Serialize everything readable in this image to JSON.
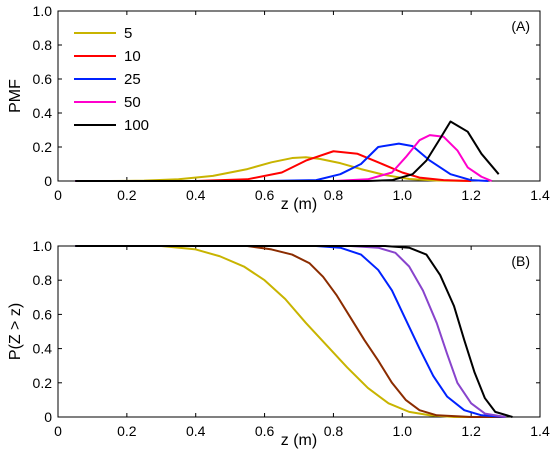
{
  "chart_data": [
    {
      "type": "line",
      "panel_label": "(A)",
      "xlabel": "z (m)",
      "ylabel": "PMF",
      "xlim": [
        0,
        1.4
      ],
      "ylim": [
        0,
        1.0
      ],
      "xticks": [
        "0",
        "0.2",
        "0.4",
        "0.6",
        "0.8",
        "1.0",
        "1.2",
        "1.4"
      ],
      "yticks": [
        "0",
        "0.2",
        "0.4",
        "0.6",
        "0.8",
        "1.0"
      ],
      "legend_position": "top-left",
      "series": [
        {
          "name": "5",
          "color": "#c8b400",
          "points": [
            [
              0.05,
              0.0
            ],
            [
              0.15,
              0.0
            ],
            [
              0.25,
              0.002
            ],
            [
              0.35,
              0.01
            ],
            [
              0.45,
              0.03
            ],
            [
              0.55,
              0.07
            ],
            [
              0.62,
              0.11
            ],
            [
              0.68,
              0.135
            ],
            [
              0.72,
              0.14
            ],
            [
              0.76,
              0.13
            ],
            [
              0.82,
              0.105
            ],
            [
              0.88,
              0.07
            ],
            [
              0.95,
              0.035
            ],
            [
              1.02,
              0.012
            ],
            [
              1.1,
              0.003
            ],
            [
              1.2,
              0.0
            ]
          ]
        },
        {
          "name": "10",
          "color": "#ff0000",
          "points": [
            [
              0.05,
              0.0
            ],
            [
              0.4,
              0.0
            ],
            [
              0.55,
              0.01
            ],
            [
              0.65,
              0.05
            ],
            [
              0.72,
              0.12
            ],
            [
              0.8,
              0.175
            ],
            [
              0.87,
              0.16
            ],
            [
              0.93,
              0.11
            ],
            [
              1.0,
              0.05
            ],
            [
              1.05,
              0.02
            ],
            [
              1.12,
              0.005
            ],
            [
              1.2,
              0.0
            ]
          ]
        },
        {
          "name": "25",
          "color": "#0022ff",
          "points": [
            [
              0.05,
              0.0
            ],
            [
              0.6,
              0.0
            ],
            [
              0.75,
              0.005
            ],
            [
              0.82,
              0.04
            ],
            [
              0.88,
              0.1
            ],
            [
              0.93,
              0.2
            ],
            [
              0.99,
              0.22
            ],
            [
              1.03,
              0.205
            ],
            [
              1.08,
              0.12
            ],
            [
              1.14,
              0.04
            ],
            [
              1.2,
              0.005
            ],
            [
              1.25,
              0.0
            ]
          ]
        },
        {
          "name": "50",
          "color": "#ff00cc",
          "points": [
            [
              0.05,
              0.0
            ],
            [
              0.8,
              0.0
            ],
            [
              0.9,
              0.01
            ],
            [
              0.97,
              0.05
            ],
            [
              1.01,
              0.14
            ],
            [
              1.05,
              0.24
            ],
            [
              1.08,
              0.27
            ],
            [
              1.12,
              0.26
            ],
            [
              1.16,
              0.18
            ],
            [
              1.19,
              0.08
            ],
            [
              1.23,
              0.025
            ],
            [
              1.26,
              0.0
            ]
          ]
        },
        {
          "name": "100",
          "color": "#000000",
          "points": [
            [
              0.05,
              0.0
            ],
            [
              0.9,
              0.0
            ],
            [
              0.97,
              0.005
            ],
            [
              1.03,
              0.04
            ],
            [
              1.07,
              0.12
            ],
            [
              1.11,
              0.25
            ],
            [
              1.14,
              0.35
            ],
            [
              1.19,
              0.29
            ],
            [
              1.23,
              0.16
            ],
            [
              1.28,
              0.04
            ]
          ]
        }
      ]
    },
    {
      "type": "line",
      "panel_label": "(B)",
      "xlabel": "z (m)",
      "ylabel": "P(Z > z)",
      "xlim": [
        0,
        1.4
      ],
      "ylim": [
        0,
        1.0
      ],
      "xticks": [
        "0",
        "0.2",
        "0.4",
        "0.6",
        "0.8",
        "1.0",
        "1.2",
        "1.4"
      ],
      "yticks": [
        "0",
        "0.2",
        "0.4",
        "0.6",
        "0.8",
        "1.0"
      ],
      "series": [
        {
          "color": "#c8b400",
          "points": [
            [
              0.05,
              1.0
            ],
            [
              0.3,
              1.0
            ],
            [
              0.4,
              0.98
            ],
            [
              0.47,
              0.94
            ],
            [
              0.54,
              0.88
            ],
            [
              0.6,
              0.8
            ],
            [
              0.66,
              0.69
            ],
            [
              0.72,
              0.55
            ],
            [
              0.78,
              0.42
            ],
            [
              0.84,
              0.29
            ],
            [
              0.9,
              0.17
            ],
            [
              0.96,
              0.08
            ],
            [
              1.02,
              0.03
            ],
            [
              1.08,
              0.01
            ],
            [
              1.15,
              0.0
            ],
            [
              1.3,
              0.0
            ]
          ]
        },
        {
          "color": "#8b2c00",
          "points": [
            [
              0.05,
              1.0
            ],
            [
              0.55,
              1.0
            ],
            [
              0.62,
              0.98
            ],
            [
              0.68,
              0.95
            ],
            [
              0.73,
              0.9
            ],
            [
              0.77,
              0.82
            ],
            [
              0.81,
              0.71
            ],
            [
              0.85,
              0.58
            ],
            [
              0.89,
              0.45
            ],
            [
              0.93,
              0.33
            ],
            [
              0.97,
              0.2
            ],
            [
              1.01,
              0.1
            ],
            [
              1.05,
              0.04
            ],
            [
              1.1,
              0.01
            ],
            [
              1.2,
              0.0
            ],
            [
              1.3,
              0.0
            ]
          ]
        },
        {
          "color": "#0022ff",
          "points": [
            [
              0.05,
              1.0
            ],
            [
              0.75,
              1.0
            ],
            [
              0.82,
              0.99
            ],
            [
              0.88,
              0.95
            ],
            [
              0.93,
              0.86
            ],
            [
              0.97,
              0.74
            ],
            [
              1.01,
              0.57
            ],
            [
              1.05,
              0.4
            ],
            [
              1.09,
              0.24
            ],
            [
              1.13,
              0.12
            ],
            [
              1.18,
              0.04
            ],
            [
              1.23,
              0.01
            ],
            [
              1.3,
              0.0
            ]
          ]
        },
        {
          "color": "#8844cc",
          "points": [
            [
              0.05,
              1.0
            ],
            [
              0.85,
              1.0
            ],
            [
              0.93,
              0.99
            ],
            [
              0.98,
              0.96
            ],
            [
              1.02,
              0.88
            ],
            [
              1.06,
              0.74
            ],
            [
              1.1,
              0.55
            ],
            [
              1.13,
              0.37
            ],
            [
              1.16,
              0.2
            ],
            [
              1.2,
              0.08
            ],
            [
              1.24,
              0.02
            ],
            [
              1.3,
              0.0
            ]
          ]
        },
        {
          "color": "#000000",
          "points": [
            [
              0.05,
              1.0
            ],
            [
              0.95,
              1.0
            ],
            [
              1.02,
              0.99
            ],
            [
              1.07,
              0.95
            ],
            [
              1.11,
              0.83
            ],
            [
              1.15,
              0.65
            ],
            [
              1.18,
              0.45
            ],
            [
              1.21,
              0.26
            ],
            [
              1.24,
              0.11
            ],
            [
              1.27,
              0.03
            ],
            [
              1.32,
              0.0
            ]
          ]
        }
      ]
    }
  ]
}
